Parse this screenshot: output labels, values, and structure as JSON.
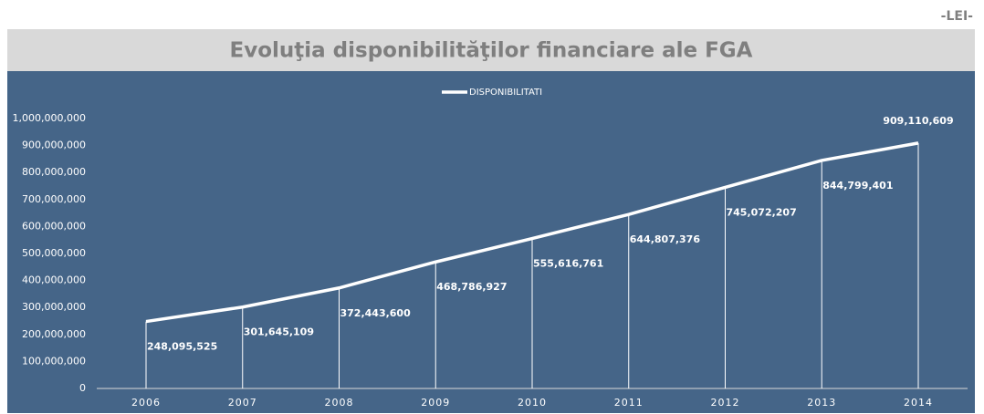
{
  "unit_label": "-LEI-",
  "chart_data": {
    "type": "line",
    "title": "Evoluţia disponibilităţilor financiare ale FGA",
    "categories": [
      "2006",
      "2007",
      "2008",
      "2009",
      "2010",
      "2011",
      "2012",
      "2013",
      "2014"
    ],
    "series": [
      {
        "name": "DISPONIBILITATI",
        "color": "#ffffff",
        "values": [
          248095525,
          301645109,
          372443600,
          468786927,
          555616761,
          644807376,
          745072207,
          844799401,
          909110609
        ],
        "value_labels": [
          "248,095,525",
          "301,645,109",
          "372,443,600",
          "468,786,927",
          "555,616,761",
          "644,807,376",
          "745,072,207",
          "844,799,401",
          "909,110,609"
        ]
      }
    ],
    "ylim": [
      0,
      1000000000
    ],
    "yticks": [
      0,
      {
        "value": 100000000,
        "label": "100,000,000"
      },
      {
        "value": 200000000,
        "label": "200,000,000"
      },
      {
        "value": 300000000,
        "label": "300,000,000"
      },
      {
        "value": 400000000,
        "label": "400,000,000"
      },
      {
        "value": 500000000,
        "label": "500,000,000"
      },
      {
        "value": 600000000,
        "label": "600,000,000"
      },
      {
        "value": 700000000,
        "label": "700,000,000"
      },
      {
        "value": 800000000,
        "label": "800,000,000"
      },
      {
        "value": 900000000,
        "label": "900,000,000"
      },
      {
        "value": 1000000000,
        "label": "1,000,000,000"
      }
    ],
    "legend": "top",
    "drop_lines": true
  }
}
